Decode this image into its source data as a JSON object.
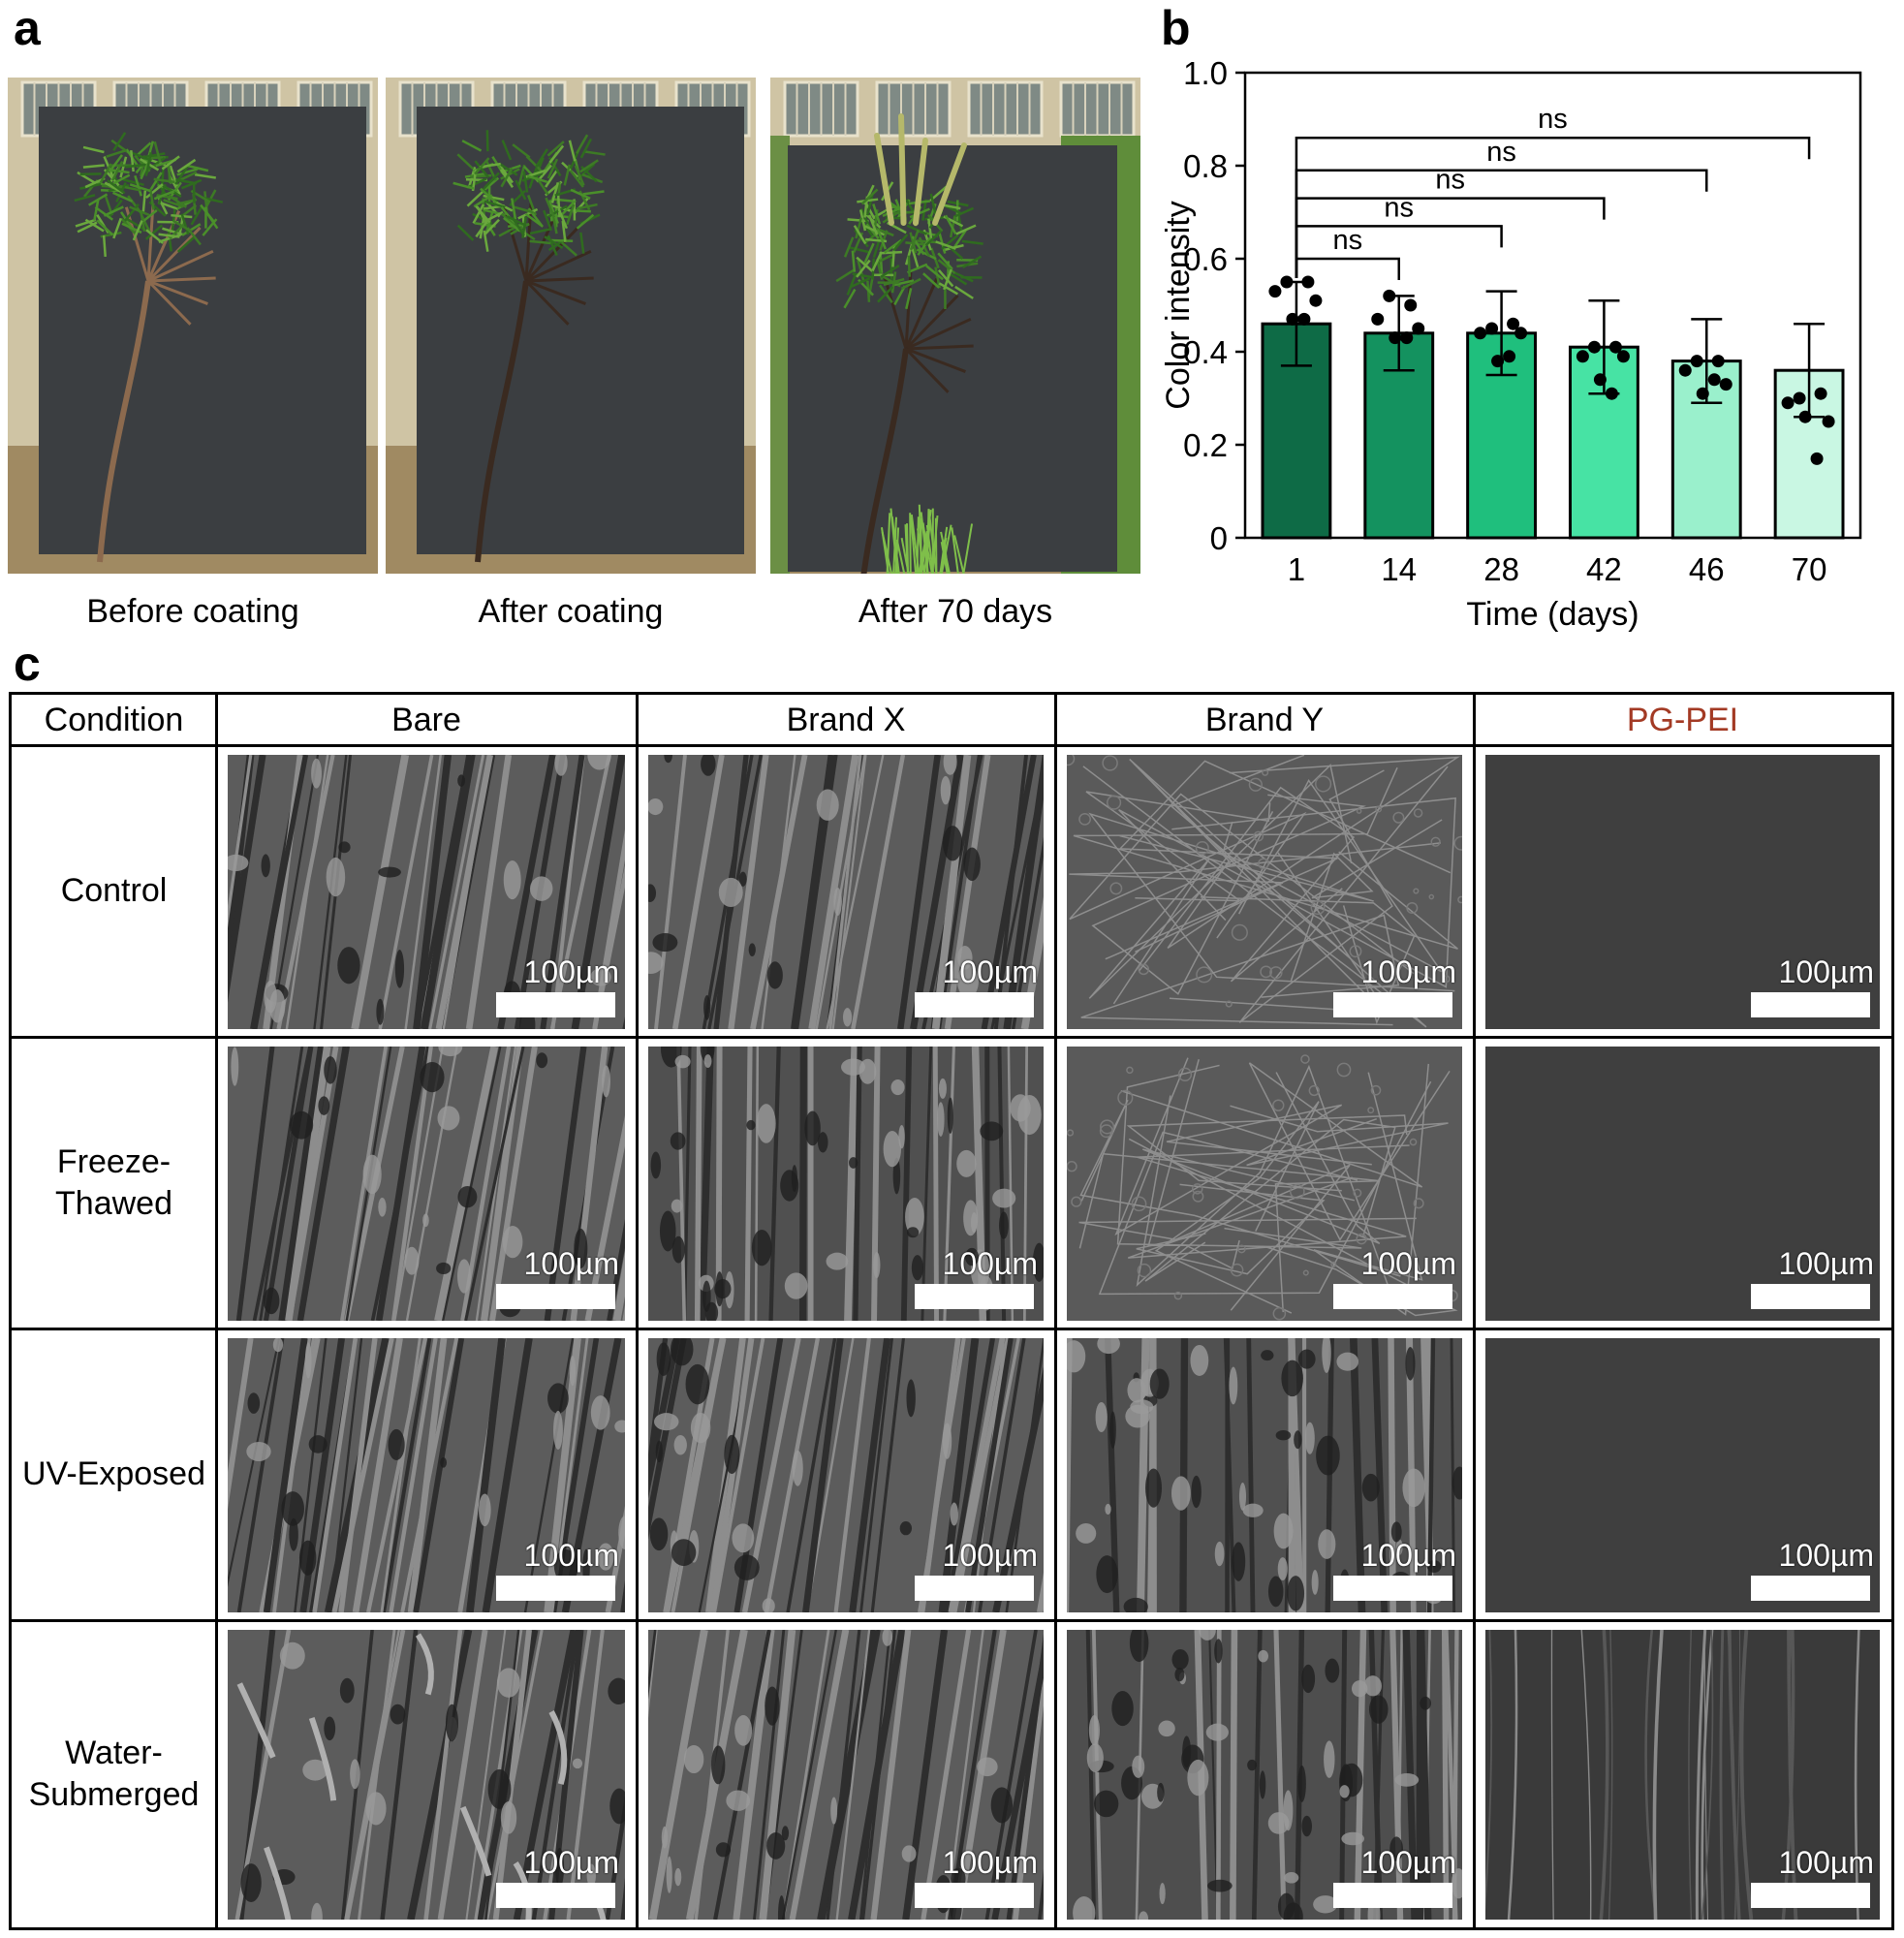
{
  "panel_letters": {
    "a": "a",
    "b": "b",
    "c": "c"
  },
  "panel_a": {
    "photos": [
      {
        "caption": "Before coating",
        "sprouts": false,
        "coated": false
      },
      {
        "caption": "After coating",
        "sprouts": false,
        "coated": true
      },
      {
        "caption": "After 70 days",
        "sprouts": true,
        "coated": true
      }
    ]
  },
  "chart_data": {
    "type": "bar",
    "title": "",
    "xlabel": "Time (days)",
    "ylabel": "Color intensity",
    "ylim": [
      0,
      1.0
    ],
    "yticks": [
      0,
      0.2,
      0.4,
      0.6,
      0.8,
      1.0
    ],
    "ytick_labels": [
      "0",
      "0.2",
      "0.4",
      "0.6",
      "0.8",
      "1.0"
    ],
    "categories": [
      "1",
      "14",
      "28",
      "42",
      "46",
      "70"
    ],
    "values": [
      0.46,
      0.44,
      0.44,
      0.41,
      0.38,
      0.36
    ],
    "errors": [
      0.09,
      0.08,
      0.09,
      0.1,
      0.09,
      0.1
    ],
    "points": [
      [
        0.55,
        0.52,
        0.45,
        0.41,
        0.38,
        0.3
      ],
      [
        0.55,
        0.5,
        0.46,
        0.41,
        0.38,
        0.31
      ],
      [
        0.53,
        0.47,
        0.44,
        0.39,
        0.36,
        0.29
      ],
      [
        0.51,
        0.45,
        0.44,
        0.39,
        0.33,
        0.25
      ],
      [
        0.47,
        0.43,
        0.38,
        0.34,
        0.31,
        0.26
      ],
      [
        0.47,
        0.43,
        0.39,
        0.31,
        0.34,
        0.17
      ]
    ],
    "bar_colors": [
      "#0e6b46",
      "#14925f",
      "#1fbf7d",
      "#47e3a4",
      "#9af0cc",
      "#c9f7e3"
    ],
    "significance": [
      {
        "from": "1",
        "to": "14",
        "label": "ns",
        "y": 0.6
      },
      {
        "from": "1",
        "to": "28",
        "label": "ns",
        "y": 0.67
      },
      {
        "from": "1",
        "to": "42",
        "label": "ns",
        "y": 0.73
      },
      {
        "from": "1",
        "to": "46",
        "label": "ns",
        "y": 0.79
      },
      {
        "from": "1",
        "to": "70",
        "label": "ns",
        "y": 0.86
      }
    ],
    "grid": false,
    "legend": "none"
  },
  "panel_c": {
    "corner_header": "Condition",
    "columns": [
      {
        "label": "Bare",
        "color": "#000000"
      },
      {
        "label": "Brand X",
        "color": "#000000"
      },
      {
        "label": "Brand Y",
        "color": "#000000"
      },
      {
        "label": "PG-PEI",
        "color": "#a33a24"
      }
    ],
    "rows": [
      {
        "label": "Control"
      },
      {
        "label": "Freeze-\nThawed"
      },
      {
        "label": "UV-Exposed"
      },
      {
        "label": "Water-\nSubmerged"
      }
    ],
    "scale_bar_label": "100µm",
    "image_texture": [
      [
        "fibrous",
        "fibrous",
        "smooth-cracked",
        "smooth"
      ],
      [
        "fibrous",
        "rough",
        "smooth-cracked",
        "smooth"
      ],
      [
        "fibrous",
        "fibrous",
        "rough",
        "smooth"
      ],
      [
        "torn",
        "fibrous",
        "porous",
        "streaked"
      ]
    ]
  }
}
